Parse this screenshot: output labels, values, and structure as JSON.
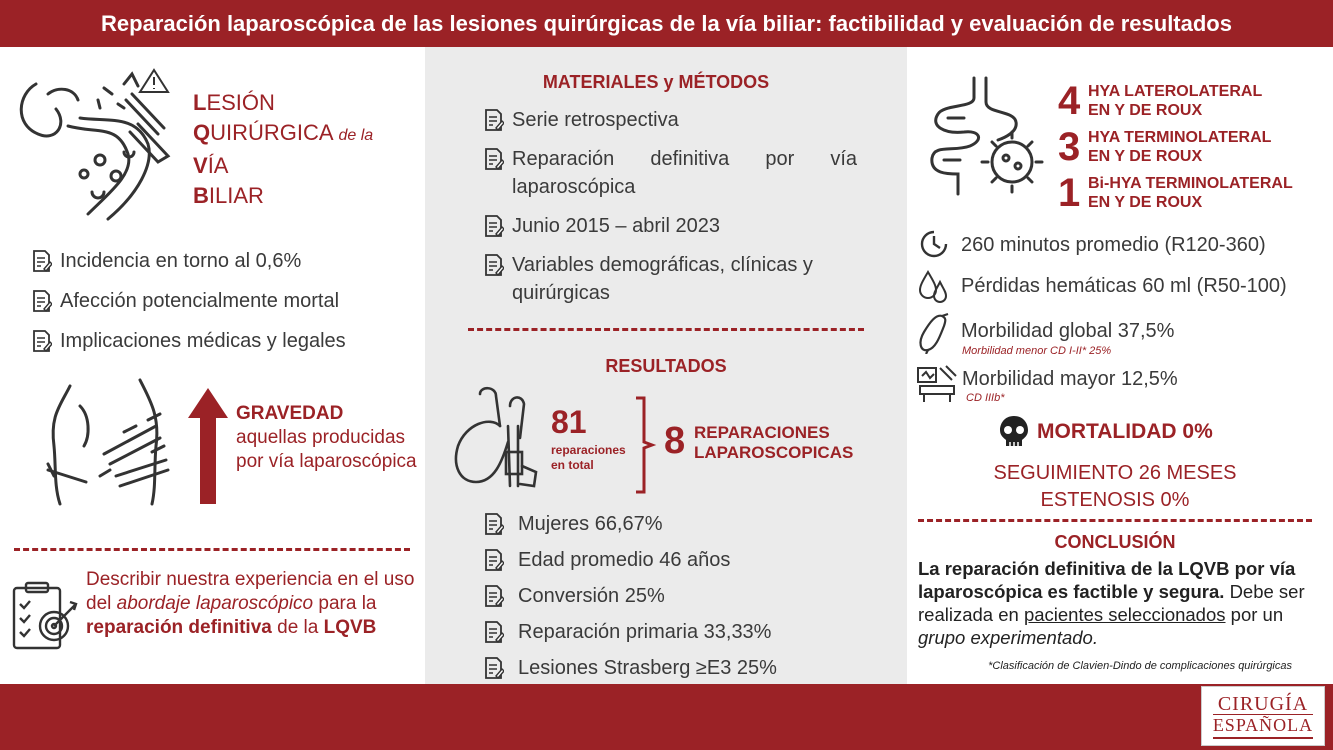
{
  "header": {
    "title": "Reparación laparoscópica de las lesiones quirúrgicas de la vía biliar: factibilidad y evaluación de resultados"
  },
  "left": {
    "lqvb": {
      "l1a": "L",
      "l1b": "ESIÓN",
      "l2a": "Q",
      "l2b": "UIRÚRGICA",
      "l2c": "de la",
      "l3a": "V",
      "l3b": "ÍA",
      "l4a": "B",
      "l4b": "ILIAR"
    },
    "bullets": [
      "Incidencia en torno al 0,6%",
      "Afección potencialmente mortal",
      "Implicaciones médicas y legales"
    ],
    "gravedad": {
      "title": "GRAVEDAD",
      "text": "aquellas producidas por vía laparoscópica"
    },
    "objective": {
      "p1": "Describir nuestra experiencia en el uso del",
      "p2": "abordaje laparoscópico",
      "p3": "para la",
      "p4": "reparación definitiva",
      "p5": "de la",
      "p6": "LQVB"
    }
  },
  "middle": {
    "methods_title": "MATERIALES y MÉTODOS",
    "methods": [
      "Serie retrospectiva",
      "Reparación definitiva por vía laparoscópica",
      "Junio 2015 – abril 2023",
      "Variables demográficas, clínicas y quirúrgicas"
    ],
    "results_title": "RESULTADOS",
    "total_num": "81",
    "total_label": "reparaciones en total",
    "lap_num": "8",
    "lap_label": "REPARACIONES LAPAROSCOPICAS",
    "results": [
      "Mujeres 66,67%",
      "Edad promedio 46 años",
      "Conversión 25%",
      "Reparación primaria 33,33%",
      "Lesiones Strasberg ≥E3 25%"
    ]
  },
  "right": {
    "hya": [
      {
        "num": "4",
        "l1": "HYA LATEROLATERAL",
        "l2": "EN Y DE ROUX"
      },
      {
        "num": "3",
        "l1": "HYA TERMINOLATERAL",
        "l2": "EN Y DE ROUX"
      },
      {
        "num": "1",
        "l1": "Bi-HYA TERMINOLATERAL",
        "l2": "EN Y DE ROUX"
      }
    ],
    "time": "260 minutos promedio (R120-360)",
    "blood": "Pérdidas hemáticas 60 ml (R50-100)",
    "morb_global": "Morbilidad global 37,5%",
    "morb_global_sub": "Morbilidad menor CD I-II* 25%",
    "morb_major": "Morbilidad mayor 12,5%",
    "morb_major_sub": "CD IIIb*",
    "mortality": "MORTALIDAD 0%",
    "followup": "SEGUIMIENTO 26 MESES",
    "stenosis": "ESTENOSIS 0%",
    "conclusion_title": "CONCLUSIÓN",
    "c_bold": "La reparación definitiva de la LQVB por vía laparoscópica es factible y segura.",
    "c1": "Debe ser realizada en",
    "c2": "pacientes seleccionados",
    "c3": "por un",
    "c4": "grupo experimentado.",
    "footnote": "*Clasificación de Clavien-Dindo de complicaciones quirúrgicas"
  },
  "logo": {
    "l1": "CIRUGÍA",
    "l2": "ESPAÑOLA"
  }
}
